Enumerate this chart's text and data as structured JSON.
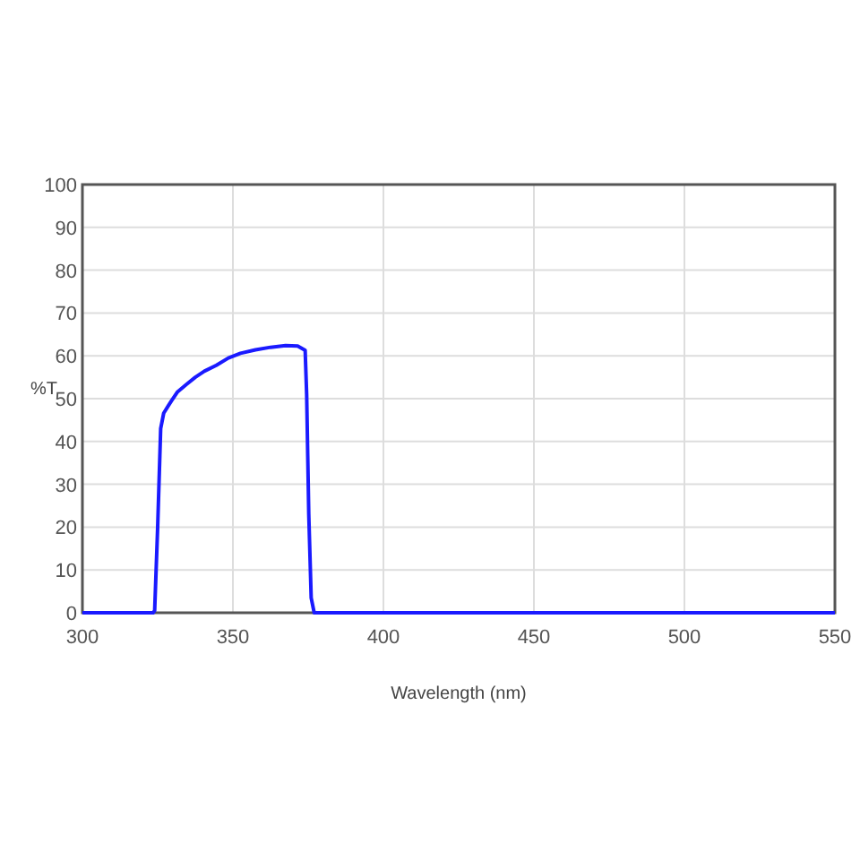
{
  "chart_data": {
    "type": "line",
    "xlabel": "Wavelength (nm)",
    "ylabel": "%T",
    "xlim": [
      300,
      550
    ],
    "ylim": [
      0,
      100
    ],
    "xticks": [
      300,
      350,
      400,
      450,
      500,
      550
    ],
    "yticks": [
      0,
      10,
      20,
      30,
      40,
      50,
      60,
      70,
      80,
      90,
      100
    ],
    "grid": true,
    "line_style": "solid",
    "marker": "none",
    "series": [
      {
        "color": "#1a1aff",
        "x": [
          300,
          323.5,
          324,
          325,
          326,
          327,
          328.5,
          329.5,
          331.5,
          334.5,
          337.5,
          340.5,
          344.5,
          348.5,
          352.5,
          357.5,
          362.5,
          367.5,
          371.5,
          374,
          374.5,
          375.2,
          376,
          377,
          550
        ],
        "values": [
          0,
          0,
          0.5,
          20,
          43,
          46.6,
          48.3,
          49.4,
          51.5,
          53.3,
          55,
          56.4,
          57.8,
          59.5,
          60.6,
          61.4,
          62,
          62.4,
          62.3,
          61.3,
          51,
          23,
          3.5,
          0,
          0
        ]
      }
    ]
  }
}
